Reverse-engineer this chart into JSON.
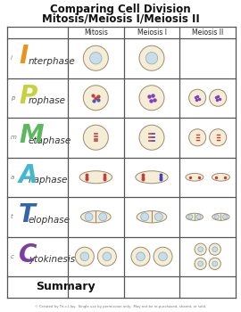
{
  "title_line1": "Comparing Cell Division",
  "title_line2": "Mitosis/Meiosis I/Meiosis II",
  "col_headers": [
    "Mitosis",
    "Meiosis I",
    "Meiosis II"
  ],
  "row_labels": [
    "I",
    "P",
    "M",
    "A",
    "T",
    "C"
  ],
  "row_label_small": [
    "i",
    "p",
    "m",
    "a",
    "t",
    "c"
  ],
  "row_phase_names": [
    "nterphase",
    "rophase",
    "etaphase",
    "naphase",
    "elophase",
    "ytokinesis"
  ],
  "row_label_colors": [
    "#E8931A",
    "#C8D040",
    "#5CB85C",
    "#45B8D0",
    "#3465A8",
    "#7B3FA0"
  ],
  "summary_label": "Summary",
  "footer": "© Created by Tri-c-l-lay.  Single use by permission only.  May not be re-purchased, shared, or sold.",
  "bg_color": "#FFFFFF",
  "border_color": "#555555",
  "cell_fill": "#F5EDD5",
  "cell_border": "#9B8B6B",
  "nucleus_fill": "#C8DDE8",
  "nucleus_border": "#88AABC"
}
